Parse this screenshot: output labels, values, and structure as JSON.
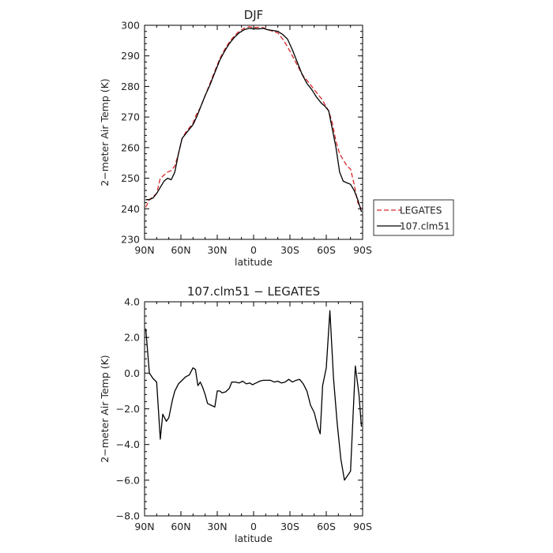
{
  "chart_data": [
    {
      "type": "line",
      "title": "DJF",
      "xlabel": "latitude",
      "ylabel": "2−meter Air Temp (K)",
      "xlim": [
        90,
        -90
      ],
      "ylim": [
        230,
        300
      ],
      "x_ticks": [
        90,
        60,
        30,
        0,
        -30,
        -60,
        -90
      ],
      "x_tick_labels": [
        "90N",
        "60N",
        "30N",
        "0",
        "30S",
        "60S",
        "90S"
      ],
      "y_ticks": [
        230,
        240,
        250,
        260,
        270,
        280,
        290,
        300
      ],
      "y_tick_labels": [
        "230",
        "240",
        "250",
        "260",
        "270",
        "280",
        "290",
        "300"
      ],
      "legend_position": "right",
      "series": [
        {
          "name": "LEGATES",
          "color": "#d62728",
          "style": "dashed",
          "x": [
            89,
            86,
            83,
            80,
            77,
            74,
            71,
            68,
            65,
            62,
            59,
            56,
            53,
            50,
            47,
            44,
            40,
            36,
            32,
            28,
            24,
            20,
            16,
            12,
            8,
            4,
            0,
            -4,
            -8,
            -12,
            -16,
            -20,
            -24,
            -28,
            -32,
            -36,
            -40,
            -44,
            -48,
            -52,
            -56,
            -59,
            -62,
            -65,
            -68,
            -71,
            -74,
            -77,
            -80,
            -83,
            -86,
            -89
          ],
          "y": [
            240.5,
            243,
            244,
            245,
            250,
            251,
            252,
            252.5,
            254,
            258,
            263,
            265,
            266.5,
            268,
            271,
            273,
            277,
            281,
            285,
            289,
            292,
            294.5,
            296.5,
            298,
            299,
            299.5,
            299.3,
            299.3,
            299.2,
            298.6,
            298,
            297.5,
            295.5,
            293,
            290,
            287,
            284,
            282,
            280,
            278,
            276,
            274,
            272,
            268,
            262,
            258,
            256,
            254,
            253,
            248,
            242,
            240
          ]
        },
        {
          "name": "107.clm51",
          "color": "#000000",
          "style": "solid",
          "x": [
            89,
            86,
            83,
            80,
            77,
            74,
            71,
            68,
            65,
            62,
            59,
            56,
            53,
            50,
            47,
            44,
            40,
            36,
            32,
            28,
            24,
            20,
            16,
            12,
            8,
            4,
            0,
            -4,
            -8,
            -12,
            -16,
            -20,
            -24,
            -28,
            -32,
            -36,
            -40,
            -44,
            -48,
            -52,
            -56,
            -59,
            -62,
            -65,
            -68,
            -71,
            -74,
            -77,
            -80,
            -83,
            -86,
            -89
          ],
          "y": [
            243,
            243,
            243.5,
            245,
            247,
            249,
            250,
            249.5,
            252,
            258,
            263,
            264.5,
            266,
            267.5,
            270,
            273,
            277,
            280.5,
            284.5,
            288.5,
            291.5,
            294,
            296,
            297.5,
            298.5,
            299,
            298.9,
            298.8,
            299,
            298.5,
            298.3,
            298,
            297,
            295.5,
            292,
            288,
            284,
            281,
            279,
            276.5,
            274.5,
            273.5,
            272,
            266,
            260,
            252,
            249,
            248.5,
            248,
            246,
            243,
            239
          ]
        }
      ]
    },
    {
      "type": "line",
      "title": "107.clm51 − LEGATES",
      "xlabel": "latitude",
      "ylabel": "2−meter Air Temp (K)",
      "xlim": [
        90,
        -90
      ],
      "ylim": [
        -8,
        4
      ],
      "x_ticks": [
        90,
        60,
        30,
        0,
        -30,
        -60,
        -90
      ],
      "x_tick_labels": [
        "90N",
        "60N",
        "30N",
        "0",
        "30S",
        "60S",
        "90S"
      ],
      "y_ticks": [
        -8,
        -6,
        -4,
        -2,
        0,
        2,
        4
      ],
      "y_tick_labels": [
        "−8.0",
        "−6.0",
        "−4.0",
        "−2.0",
        "0.0",
        "2.0",
        "4.0"
      ],
      "series": [
        {
          "color": "#000000",
          "style": "solid",
          "x": [
            89,
            86,
            83,
            80,
            77,
            75,
            72,
            70,
            67,
            65,
            62,
            59,
            56,
            53,
            50,
            48,
            46,
            44,
            42,
            40,
            38,
            35,
            32,
            30,
            28,
            26,
            23,
            20,
            18,
            15,
            12,
            9,
            6,
            3,
            1,
            -2,
            -5,
            -8,
            -11,
            -14,
            -17,
            -20,
            -23,
            -26,
            -29,
            -32,
            -35,
            -38,
            -41,
            -44,
            -47,
            -50,
            -53,
            -55,
            -57,
            -60,
            -63,
            -66,
            -69,
            -72,
            -75,
            -77,
            -80,
            -84,
            -87,
            -89
          ],
          "y": [
            2.5,
            0,
            -0.3,
            -0.5,
            -3.7,
            -2.3,
            -2.7,
            -2.5,
            -1.5,
            -1,
            -0.6,
            -0.4,
            -0.2,
            -0.1,
            0.3,
            0.2,
            -0.7,
            -0.5,
            -0.8,
            -1.2,
            -1.7,
            -1.8,
            -1.9,
            -1.0,
            -1.0,
            -1.1,
            -1.05,
            -0.85,
            -0.5,
            -0.5,
            -0.55,
            -0.45,
            -0.6,
            -0.55,
            -0.65,
            -0.55,
            -0.45,
            -0.4,
            -0.4,
            -0.4,
            -0.5,
            -0.45,
            -0.55,
            -0.5,
            -0.35,
            -0.5,
            -0.4,
            -0.35,
            -0.6,
            -1,
            -1.8,
            -2.2,
            -3.0,
            -3.4,
            -0.7,
            0.3,
            3.5,
            -0.3,
            -2.8,
            -4.8,
            -6.0,
            -5.8,
            -5.5,
            0.4,
            -1.2,
            -3.0
          ]
        }
      ]
    }
  ]
}
